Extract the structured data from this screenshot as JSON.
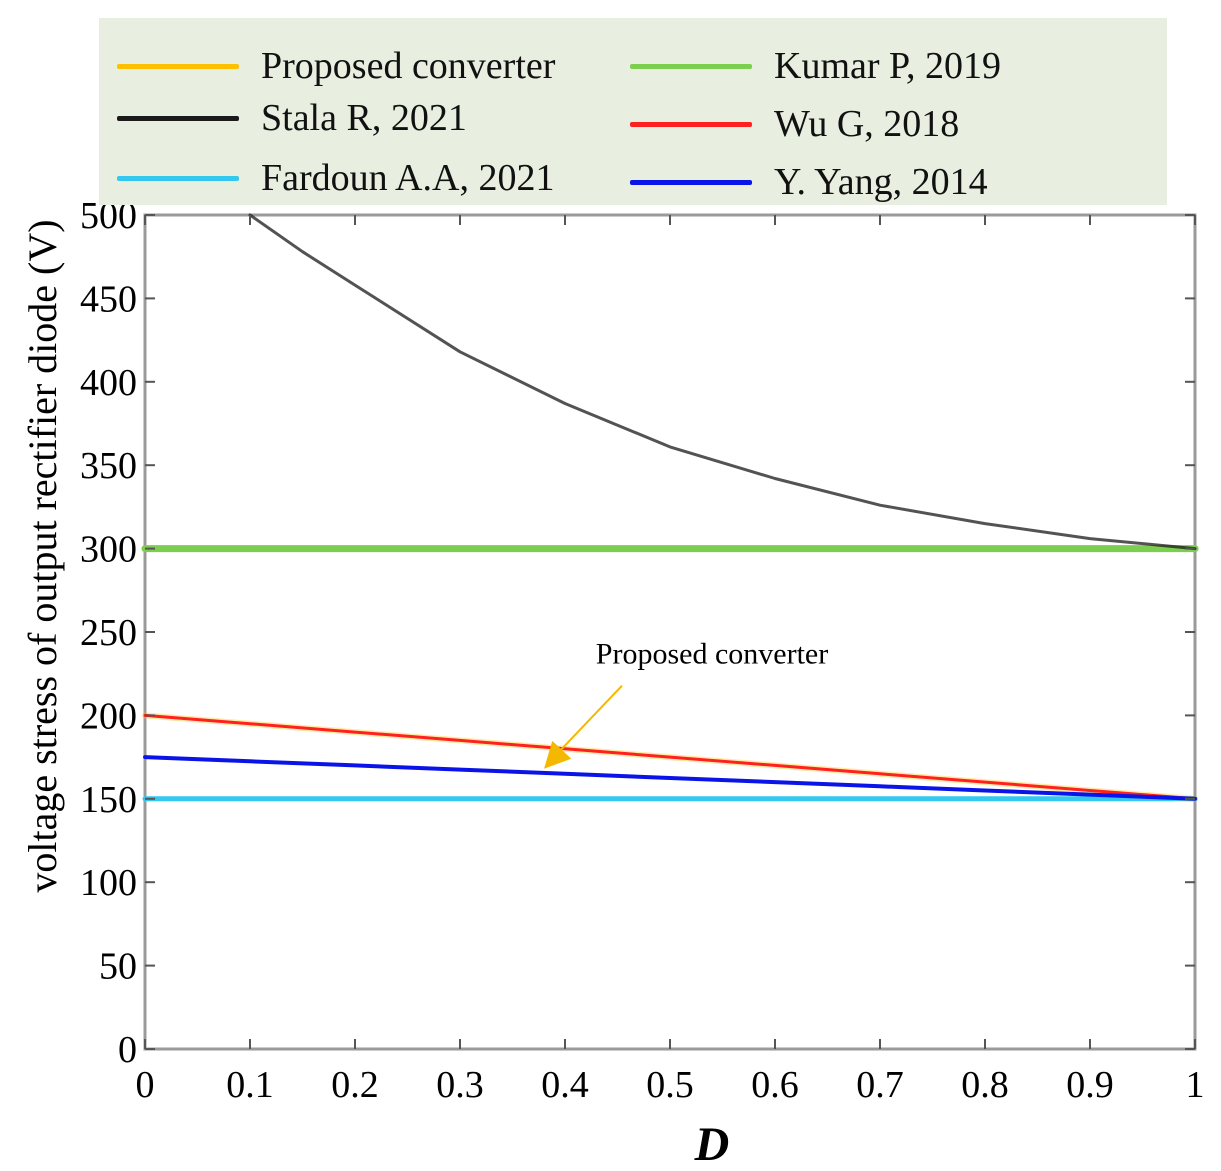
{
  "chart_data": {
    "type": "line",
    "title": "",
    "xlabel": "D",
    "ylabel": "voltage stress of output rectifier diode (V)",
    "xlim": [
      0,
      1
    ],
    "ylim": [
      0,
      500
    ],
    "x_ticks": [
      "0",
      "0.1",
      "0.2",
      "0.3",
      "0.4",
      "0.5",
      "0.6",
      "0.7",
      "0.8",
      "0.9",
      "1"
    ],
    "y_ticks": [
      "0",
      "50",
      "100",
      "150",
      "200",
      "250",
      "300",
      "350",
      "400",
      "450",
      "500"
    ],
    "grid": false,
    "legend_position": "top",
    "series": [
      {
        "name": "Proposed converter",
        "color": "#ffc000",
        "x": [
          0,
          0.1,
          0.2,
          0.3,
          0.4,
          0.5,
          0.6,
          0.7,
          0.8,
          0.9,
          1.0
        ],
        "y": [
          200,
          195,
          190,
          185,
          180,
          175,
          170,
          165,
          160,
          155,
          150
        ]
      },
      {
        "name": "Kumar P, 2019",
        "color": "#7ccf4e",
        "x": [
          0,
          1
        ],
        "y": [
          300,
          300
        ]
      },
      {
        "name": "Stala R,  2021",
        "color": "#1a1a1a",
        "x": [
          0.1,
          0.15,
          0.2,
          0.3,
          0.4,
          0.5,
          0.6,
          0.7,
          0.8,
          0.9,
          1.0
        ],
        "y": [
          500,
          478,
          458,
          418,
          387,
          361,
          342,
          326,
          315,
          306,
          300
        ]
      },
      {
        "name": "Wu G, 2018",
        "color": "#ff2020",
        "x": [
          0,
          0.1,
          0.2,
          0.3,
          0.4,
          0.5,
          0.6,
          0.7,
          0.8,
          0.9,
          1.0
        ],
        "y": [
          200,
          195,
          190,
          185,
          180,
          175,
          170,
          165,
          160,
          155,
          150
        ]
      },
      {
        "name": "Fardoun A.A,  2021",
        "color": "#33c8f0",
        "x": [
          0,
          1
        ],
        "y": [
          150,
          150
        ]
      },
      {
        "name": "Y. Yang, 2014",
        "color": "#0a14e8",
        "x": [
          0,
          0.1,
          0.2,
          0.3,
          0.4,
          0.5,
          0.6,
          0.7,
          0.8,
          0.9,
          1.0
        ],
        "y": [
          175,
          172.5,
          170,
          167.5,
          165,
          162.5,
          160,
          157.5,
          155,
          152.5,
          150
        ]
      }
    ],
    "annotations": [
      {
        "text": "Proposed converter",
        "x": 0.54,
        "y": 225,
        "arrow_to_x": 0.38,
        "arrow_to_y": 168,
        "color": "#f5b800"
      }
    ]
  }
}
